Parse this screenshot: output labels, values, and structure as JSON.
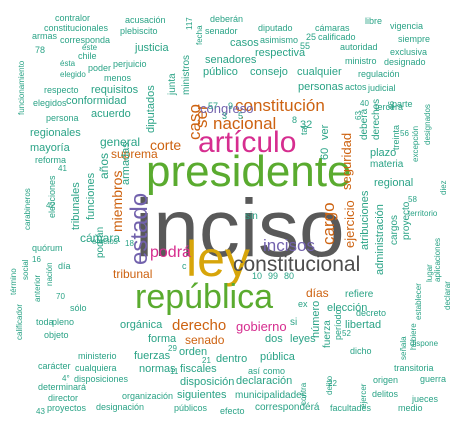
{
  "colors": {
    "gray": "#595959",
    "green": "#5aab2f",
    "gold": "#d7a50a",
    "magenta": "#d62d8f",
    "purple": "#7262ad",
    "orange": "#cd6210",
    "teal": "#2aa386",
    "dark": "#4d4d4d"
  },
  "words": [
    {
      "text": "inciso",
      "color": "gray"
    },
    {
      "text": "presidente",
      "color": "green"
    },
    {
      "text": "ley",
      "color": "gold"
    },
    {
      "text": "república",
      "color": "green"
    },
    {
      "text": "artículo",
      "color": "magenta"
    },
    {
      "text": "estado",
      "color": "purple"
    },
    {
      "text": "constitucional",
      "color": "dark"
    },
    {
      "text": "nacional",
      "color": "orange"
    },
    {
      "text": "constitución",
      "color": "orange"
    },
    {
      "text": "podrá",
      "color": "magenta"
    },
    {
      "text": "incisos",
      "color": "purple"
    },
    {
      "text": "cargo",
      "color": "orange"
    },
    {
      "text": "caso",
      "color": "orange"
    },
    {
      "text": "ser",
      "color": "orange"
    },
    {
      "text": "derecho",
      "color": "orange"
    },
    {
      "text": "corte",
      "color": "orange"
    },
    {
      "text": "congreso",
      "color": "purple"
    },
    {
      "text": "miembros",
      "color": "orange"
    },
    {
      "text": "ejercicio",
      "color": "orange"
    },
    {
      "text": "seguridad",
      "color": "orange"
    },
    {
      "text": "tribunal",
      "color": "orange"
    },
    {
      "text": "gobierno",
      "color": "magenta"
    },
    {
      "text": "senado",
      "color": "orange"
    },
    {
      "text": "suprema",
      "color": "orange"
    },
    {
      "text": "cámara",
      "color": "teal"
    },
    {
      "text": "general",
      "color": "teal"
    },
    {
      "text": "diputados",
      "color": "teal"
    },
    {
      "text": "años",
      "color": "teal"
    },
    {
      "text": "funciones",
      "color": "teal"
    },
    {
      "text": "días",
      "color": "orange"
    },
    {
      "text": "administración",
      "color": "teal"
    },
    {
      "text": "60",
      "color": "teal"
    },
    {
      "text": "ver",
      "color": "teal"
    },
    {
      "text": "32",
      "color": "teal"
    },
    {
      "text": "senadores",
      "color": "teal"
    },
    {
      "text": "público",
      "color": "teal"
    },
    {
      "text": "consejo",
      "color": "teal"
    },
    {
      "text": "cualquier",
      "color": "teal"
    },
    {
      "text": "personas",
      "color": "teal"
    },
    {
      "text": "casos",
      "color": "teal"
    },
    {
      "text": "respectiva",
      "color": "teal"
    },
    {
      "text": "justicia",
      "color": "teal"
    },
    {
      "text": "junta",
      "color": "teal"
    },
    {
      "text": "ministros",
      "color": "teal"
    },
    {
      "text": "requisitos",
      "color": "teal"
    },
    {
      "text": "conformidad",
      "color": "teal"
    },
    {
      "text": "acuerdo",
      "color": "teal"
    },
    {
      "text": "regionales",
      "color": "teal"
    },
    {
      "text": "mayoría",
      "color": "teal"
    },
    {
      "text": "reforma",
      "color": "teal"
    },
    {
      "text": "elecciones",
      "color": "teal"
    },
    {
      "text": "tribunales",
      "color": "teal"
    },
    {
      "text": "podrán",
      "color": "teal"
    },
    {
      "text": "armadas",
      "color": "teal"
    },
    {
      "text": "orgánica",
      "color": "teal"
    },
    {
      "text": "forma",
      "color": "teal"
    },
    {
      "text": "fuerzas",
      "color": "teal"
    },
    {
      "text": "orden",
      "color": "teal"
    },
    {
      "text": "normas",
      "color": "teal"
    },
    {
      "text": "dentro",
      "color": "teal"
    },
    {
      "text": "pública",
      "color": "teal"
    },
    {
      "text": "disposición",
      "color": "teal"
    },
    {
      "text": "declaración",
      "color": "teal"
    },
    {
      "text": "fiscales",
      "color": "teal"
    },
    {
      "text": "dos",
      "color": "teal"
    },
    {
      "text": "leyes",
      "color": "teal"
    },
    {
      "text": "elección",
      "color": "teal"
    },
    {
      "text": "número",
      "color": "teal"
    },
    {
      "text": "fuerza",
      "color": "teal"
    },
    {
      "text": "libertad",
      "color": "teal"
    },
    {
      "text": "refiere",
      "color": "teal"
    },
    {
      "text": "materia",
      "color": "teal"
    },
    {
      "text": "plazo",
      "color": "teal"
    },
    {
      "text": "regional",
      "color": "teal"
    },
    {
      "text": "atribuciones",
      "color": "teal"
    },
    {
      "text": "cargos",
      "color": "teal"
    },
    {
      "text": "proyecto",
      "color": "teal"
    },
    {
      "text": "derechos",
      "color": "teal"
    },
    {
      "text": "deberá",
      "color": "teal"
    },
    {
      "text": "quórum",
      "color": "teal"
    },
    {
      "text": "ministerio",
      "color": "teal"
    },
    {
      "text": "disposiciones",
      "color": "teal"
    },
    {
      "text": "cualquiera",
      "color": "teal"
    },
    {
      "text": "siguientes",
      "color": "teal"
    },
    {
      "text": "correspondérá",
      "color": "teal"
    },
    {
      "text": "municipalidades",
      "color": "teal"
    },
    {
      "text": "organización",
      "color": "teal"
    },
    {
      "text": "designación",
      "color": "teal"
    },
    {
      "text": "públicos",
      "color": "teal"
    },
    {
      "text": "proyectos",
      "color": "teal"
    },
    {
      "text": "determinará",
      "color": "teal"
    },
    {
      "text": "director",
      "color": "teal"
    },
    {
      "text": "facultades",
      "color": "teal"
    },
    {
      "text": "delitos",
      "color": "teal"
    },
    {
      "text": "origen",
      "color": "teal"
    },
    {
      "text": "dicho",
      "color": "teal"
    },
    {
      "text": "decreto",
      "color": "teal"
    },
    {
      "text": "período",
      "color": "teal"
    },
    {
      "text": "efecto",
      "color": "teal"
    },
    {
      "text": "carácter",
      "color": "teal"
    },
    {
      "text": "calificador",
      "color": "teal"
    },
    {
      "text": "objeto",
      "color": "teal"
    },
    {
      "text": "pleno",
      "color": "teal"
    },
    {
      "text": "toda",
      "color": "teal"
    },
    {
      "text": "sólo",
      "color": "teal"
    },
    {
      "text": "anterior",
      "color": "teal"
    },
    {
      "text": "nación",
      "color": "teal"
    },
    {
      "text": "social",
      "color": "teal"
    },
    {
      "text": "término",
      "color": "teal"
    },
    {
      "text": "carabineros",
      "color": "teal"
    },
    {
      "text": "persona",
      "color": "teal"
    },
    {
      "text": "elegidos",
      "color": "teal"
    },
    {
      "text": "respecto",
      "color": "teal"
    },
    {
      "text": "funcionamiento",
      "color": "teal"
    },
    {
      "text": "armas",
      "color": "teal"
    },
    {
      "text": "corresponda",
      "color": "teal"
    },
    {
      "text": "constitucionales",
      "color": "teal"
    },
    {
      "text": "contralor",
      "color": "teal"
    },
    {
      "text": "acusación",
      "color": "teal"
    },
    {
      "text": "plebiscito",
      "color": "teal"
    },
    {
      "text": "deberán",
      "color": "teal"
    },
    {
      "text": "senador",
      "color": "teal"
    },
    {
      "text": "diputado",
      "color": "teal"
    },
    {
      "text": "asimismo",
      "color": "teal"
    },
    {
      "text": "cámaras",
      "color": "teal"
    },
    {
      "text": "calificado",
      "color": "teal"
    },
    {
      "text": "autoridad",
      "color": "teal"
    },
    {
      "text": "libre",
      "color": "teal"
    },
    {
      "text": "vigencia",
      "color": "teal"
    },
    {
      "text": "siempre",
      "color": "teal"
    },
    {
      "text": "exclusiva",
      "color": "teal"
    },
    {
      "text": "designado",
      "color": "teal"
    },
    {
      "text": "ministro",
      "color": "teal"
    },
    {
      "text": "regulación",
      "color": "teal"
    },
    {
      "text": "judicial",
      "color": "teal"
    },
    {
      "text": "actos",
      "color": "teal"
    },
    {
      "text": "menos",
      "color": "teal"
    },
    {
      "text": "perjuicio",
      "color": "teal"
    },
    {
      "text": "chile",
      "color": "teal"
    },
    {
      "text": "poder",
      "color": "teal"
    },
    {
      "text": "éste",
      "color": "teal"
    },
    {
      "text": "ésta",
      "color": "teal"
    },
    {
      "text": "elegido",
      "color": "teal"
    },
    {
      "text": "tercera",
      "color": "teal"
    },
    {
      "text": "parte",
      "color": "teal"
    },
    {
      "text": "treinta",
      "color": "teal"
    },
    {
      "text": "excepción",
      "color": "teal"
    },
    {
      "text": "designados",
      "color": "teal"
    },
    {
      "text": "territorio",
      "color": "teal"
    },
    {
      "text": "lugar",
      "color": "teal"
    },
    {
      "text": "aplicaciones",
      "color": "teal"
    },
    {
      "text": "declarar",
      "color": "teal"
    },
    {
      "text": "diez",
      "color": "teal"
    },
    {
      "text": "tal",
      "color": "teal"
    },
    {
      "text": "guerra",
      "color": "teal"
    },
    {
      "text": "transitoria",
      "color": "teal"
    },
    {
      "text": "señala",
      "color": "teal"
    },
    {
      "text": "hubiere",
      "color": "teal"
    },
    {
      "text": "establecer",
      "color": "teal"
    },
    {
      "text": "ejercer",
      "color": "teal"
    },
    {
      "text": "delito",
      "color": "teal"
    },
    {
      "text": "jueces",
      "color": "teal"
    },
    {
      "text": "medio",
      "color": "teal"
    },
    {
      "text": "dispone",
      "color": "teal"
    },
    {
      "text": "así",
      "color": "teal"
    },
    {
      "text": "como",
      "color": "teal"
    },
    {
      "text": "ex",
      "color": "teal"
    },
    {
      "text": "sin",
      "color": "teal"
    },
    {
      "text": "si",
      "color": "teal"
    },
    {
      "text": "c",
      "color": "teal"
    },
    {
      "text": "día",
      "color": "teal"
    },
    {
      "text": "efectos",
      "color": "teal"
    },
    {
      "text": "fecha",
      "color": "teal"
    },
    {
      "text": "contra",
      "color": "teal"
    },
    {
      "text": "78",
      "color": "teal"
    },
    {
      "text": "117",
      "color": "teal"
    },
    {
      "text": "25",
      "color": "teal"
    },
    {
      "text": "55",
      "color": "teal"
    },
    {
      "text": "57",
      "color": "teal"
    },
    {
      "text": "9",
      "color": "teal"
    },
    {
      "text": "8",
      "color": "teal"
    },
    {
      "text": "10",
      "color": "teal"
    },
    {
      "text": "99",
      "color": "teal"
    },
    {
      "text": "80",
      "color": "teal"
    },
    {
      "text": "63",
      "color": "teal"
    },
    {
      "text": "40",
      "color": "teal"
    },
    {
      "text": "46",
      "color": "teal"
    },
    {
      "text": "56",
      "color": "teal"
    },
    {
      "text": "58",
      "color": "teal"
    },
    {
      "text": "16",
      "color": "teal"
    },
    {
      "text": "18",
      "color": "teal"
    },
    {
      "text": "29",
      "color": "teal"
    },
    {
      "text": "21",
      "color": "teal"
    },
    {
      "text": "11",
      "color": "teal"
    },
    {
      "text": "4°",
      "color": "teal"
    },
    {
      "text": "42",
      "color": "teal"
    },
    {
      "text": "43",
      "color": "teal"
    },
    {
      "text": "41",
      "color": "teal"
    },
    {
      "text": "22",
      "color": "teal"
    },
    {
      "text": "70",
      "color": "teal"
    },
    {
      "text": "52",
      "color": "teal"
    },
    {
      "text": "5",
      "color": "teal"
    },
    {
      "text": "3",
      "color": "teal"
    }
  ]
}
